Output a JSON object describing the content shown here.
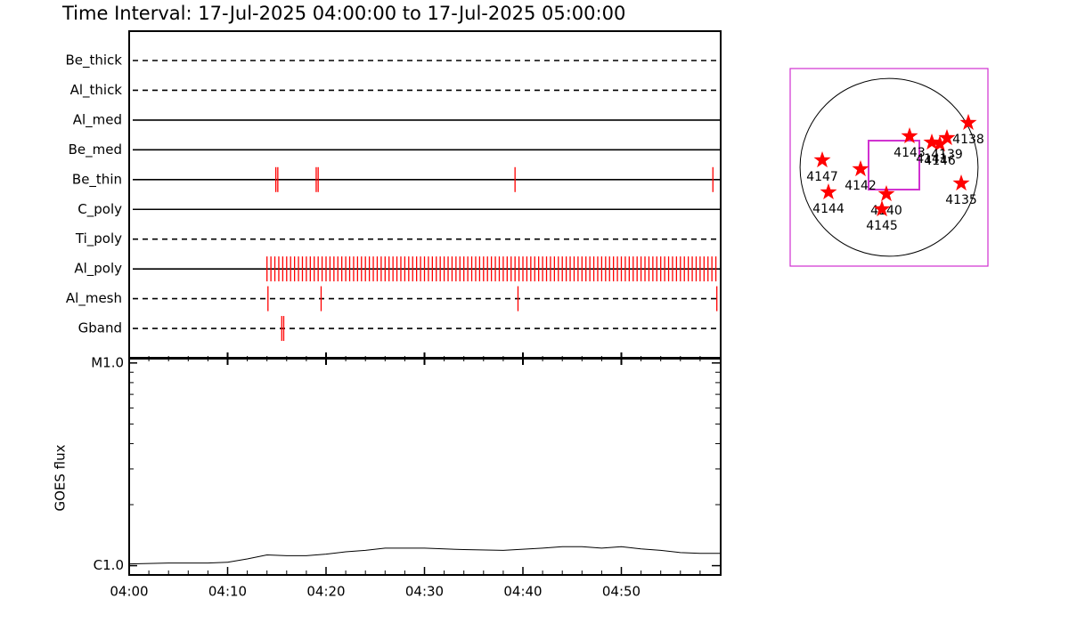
{
  "title": "Time Interval: 17-Jul-2025 04:00:00 to 17-Jul-2025 05:00:00",
  "chart_data": [
    {
      "type": "timeline",
      "categories": [
        "Be_thick",
        "Al_thick",
        "Al_med",
        "Be_med",
        "Be_thin",
        "C_poly",
        "Ti_poly",
        "Al_poly",
        "Al_mesh",
        "Gband"
      ],
      "line_style": [
        "dashed",
        "dashed",
        "solid",
        "solid",
        "solid",
        "solid",
        "dashed",
        "solid",
        "dashed",
        "dashed"
      ],
      "event_color": "#ff0000",
      "xlim": [
        0,
        60
      ],
      "events": [
        [],
        [],
        [],
        [],
        [
          14.9,
          15.1,
          19.0,
          19.2,
          39.2,
          59.3
        ],
        [],
        [],
        [
          14.0,
          14.4,
          14.8,
          15.2,
          15.6,
          16.0,
          16.4,
          16.8,
          17.2,
          17.6,
          18.0,
          18.4,
          18.8,
          19.2,
          19.6,
          20.0,
          20.4,
          20.8,
          21.2,
          21.6,
          22.0,
          22.4,
          22.8,
          23.2,
          23.6,
          24.0,
          24.4,
          24.8,
          25.2,
          25.6,
          26.0,
          26.4,
          26.8,
          27.2,
          27.6,
          28.0,
          28.4,
          28.8,
          29.2,
          29.6,
          30.0,
          30.4,
          30.8,
          31.2,
          31.6,
          32.0,
          32.4,
          32.8,
          33.2,
          33.6,
          34.0,
          34.4,
          34.8,
          35.2,
          35.6,
          36.0,
          36.4,
          36.8,
          37.2,
          37.6,
          38.0,
          38.4,
          38.8,
          39.2,
          39.6,
          40.0,
          40.4,
          40.8,
          41.2,
          41.6,
          42.0,
          42.4,
          42.8,
          43.2,
          43.6,
          44.0,
          44.4,
          44.8,
          45.2,
          45.6,
          46.0,
          46.4,
          46.8,
          47.2,
          47.6,
          48.0,
          48.4,
          48.8,
          49.2,
          49.6,
          50.0,
          50.4,
          50.8,
          51.2,
          51.6,
          52.0,
          52.4,
          52.8,
          53.2,
          53.6,
          54.0,
          54.4,
          54.8,
          55.2,
          55.6,
          56.0,
          56.4,
          56.8,
          57.2,
          57.6,
          58.0,
          58.4,
          58.8,
          59.2,
          59.6
        ],
        [
          14.1,
          19.5,
          39.5,
          59.7
        ],
        [
          15.5,
          15.7
        ]
      ]
    },
    {
      "type": "line",
      "ylabel": "GOES flux",
      "color": "#000000",
      "log_y": true,
      "xlim": [
        0,
        60
      ],
      "xticks": [
        {
          "value": 0,
          "label": "04:00"
        },
        {
          "value": 10,
          "label": "04:10"
        },
        {
          "value": 20,
          "label": "04:20"
        },
        {
          "value": 30,
          "label": "04:30"
        },
        {
          "value": 40,
          "label": "04:40"
        },
        {
          "value": 50,
          "label": "04:50"
        }
      ],
      "xminorticks": [
        2,
        4,
        6,
        8,
        12,
        14,
        16,
        18,
        22,
        24,
        26,
        28,
        32,
        34,
        36,
        38,
        42,
        44,
        46,
        48,
        52,
        54,
        56,
        58
      ],
      "ylim": [
        9e-07,
        1.05e-05
      ],
      "yticks": [
        {
          "value": 1e-06,
          "label": "C1.0"
        },
        {
          "value": 1e-05,
          "label": "M1.0"
        }
      ],
      "yminorticks": [
        2e-06,
        3e-06,
        4e-06,
        5e-06,
        6e-06,
        7e-06,
        8e-06,
        9e-06
      ],
      "x": [
        0,
        4,
        8,
        10,
        12,
        14,
        16,
        18,
        20,
        22,
        24,
        26,
        28,
        30,
        34,
        38,
        42,
        44,
        46,
        48,
        50,
        52,
        54,
        56,
        58,
        60
      ],
      "values": [
        1.02e-06,
        1.03e-06,
        1.03e-06,
        1.04e-06,
        1.08e-06,
        1.13e-06,
        1.12e-06,
        1.12e-06,
        1.14e-06,
        1.17e-06,
        1.19e-06,
        1.22e-06,
        1.22e-06,
        1.22e-06,
        1.2e-06,
        1.19e-06,
        1.22e-06,
        1.24e-06,
        1.24e-06,
        1.22e-06,
        1.24e-06,
        1.21e-06,
        1.19e-06,
        1.16e-06,
        1.15e-06,
        1.15e-06
      ]
    },
    {
      "type": "scatter",
      "color": "#ff0000",
      "frame_color": "#d030d0",
      "xlim": [
        -1100,
        1100
      ],
      "ylim": [
        -1100,
        1100
      ],
      "solar_radius": 990,
      "fov": {
        "x": [
          -228,
          337
        ],
        "y": [
          -248,
          297
        ]
      },
      "labels": [
        "4147",
        "4144",
        "4142",
        "4140",
        "4145",
        "4143",
        "4141",
        "4146",
        "4139",
        "4138",
        "4135"
      ],
      "x": [
        -743,
        -674,
        -317,
        -30,
        -79,
        228,
        476,
        565,
        644,
        882,
        803
      ],
      "y": [
        79,
        -277,
        -20,
        -297,
        -466,
        347,
        277,
        258,
        327,
        496,
        -178
      ]
    }
  ]
}
